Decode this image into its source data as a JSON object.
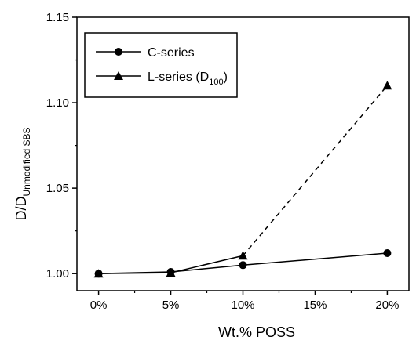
{
  "chart_data": {
    "type": "line",
    "xlabel": "Wt.% POSS",
    "ylabel": {
      "main": "D/D",
      "subscript": "Unmodified SBS"
    },
    "x_categories": [
      "0%",
      "5%",
      "10%",
      "15%",
      "20%"
    ],
    "x_values": [
      0,
      5,
      10,
      15,
      20
    ],
    "xlim": [
      -1.5,
      21.5
    ],
    "ylim": [
      0.99,
      1.15
    ],
    "y_ticks": [
      1.0,
      1.05,
      1.1,
      1.15
    ],
    "y_tick_labels": [
      "1.00",
      "1.05",
      "1.10",
      "1.15"
    ],
    "grid": false,
    "legend_position": "top-left",
    "series": [
      {
        "name": "C-series",
        "marker": "circle",
        "points": [
          {
            "x": 0,
            "y": 1.0
          },
          {
            "x": 5,
            "y": 1.001
          },
          {
            "x": 10,
            "y": 1.005
          },
          {
            "x": 20,
            "y": 1.012
          }
        ],
        "segment_styles": [
          "solid",
          "solid",
          "solid"
        ]
      },
      {
        "name": "L-series",
        "name_suffix": " (D",
        "name_subscript": "100",
        "name_close": ")",
        "marker": "triangle",
        "points": [
          {
            "x": 0,
            "y": 1.0
          },
          {
            "x": 5,
            "y": 1.0005
          },
          {
            "x": 10,
            "y": 1.0105
          },
          {
            "x": 20,
            "y": 1.11
          }
        ],
        "segment_styles": [
          "solid",
          "solid",
          "dashed"
        ]
      }
    ]
  }
}
